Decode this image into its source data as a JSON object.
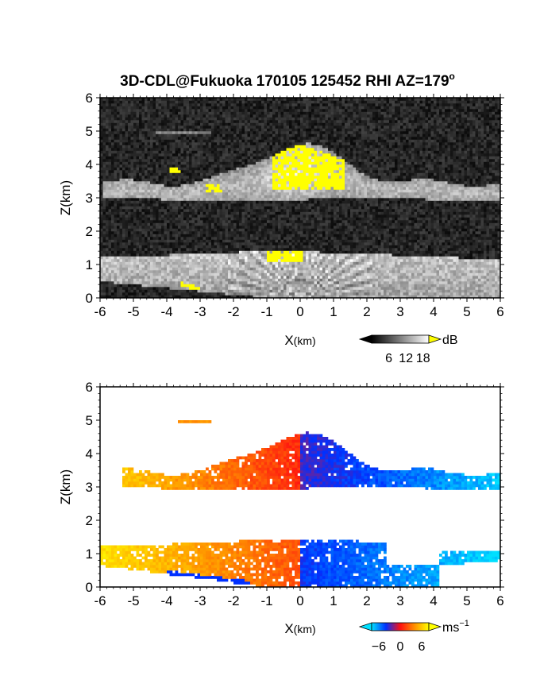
{
  "figure": {
    "title": "3D-CDL@Fukuoka 170105 125452 RHI AZ=179",
    "title_superscript": "o"
  },
  "chart_data": [
    {
      "type": "heatmap",
      "panel": "top",
      "quantity": "intensity",
      "xlabel_main": "X",
      "xlabel_unit": "(km)",
      "ylabel": "Z(km)",
      "xlim": [
        -6,
        6
      ],
      "ylim": [
        0,
        6
      ],
      "x_ticks": [
        "-6",
        "-5",
        "-4",
        "-3",
        "-2",
        "-1",
        "0",
        "1",
        "2",
        "3",
        "4",
        "5",
        "6"
      ],
      "y_ticks": [
        "0",
        "1",
        "2",
        "3",
        "4",
        "5",
        "6"
      ],
      "colorbar": {
        "unit": "dB",
        "ticks": [
          "6",
          "12",
          "18"
        ],
        "tick_values": [
          6,
          12,
          18
        ],
        "range": [
          0,
          20
        ],
        "colormap": "grayscale with yellow above max",
        "colors": {
          "low": "#000000",
          "high": "#ffffff",
          "over": "#ffff00"
        }
      },
      "features": [
        {
          "name": "upper cloud layer",
          "x_range": [
            -5.9,
            6
          ],
          "z_range": [
            2.9,
            4.7
          ],
          "peak_x": 0,
          "peak_z": 4.6
        },
        {
          "name": "lower aerosol layer",
          "x_range": [
            -6,
            6
          ],
          "z_range": [
            0,
            1.5
          ]
        },
        {
          "name": "thin layer",
          "x_range": [
            -4.3,
            -2.7
          ],
          "z_range": [
            4.9,
            5.0
          ]
        },
        {
          "name": "saturated core (yellow)",
          "x_range": [
            -0.8,
            1.3
          ],
          "z_range": [
            3.2,
            4.6
          ]
        },
        {
          "name": "saturated low core (yellow)",
          "x_range": [
            -1.0,
            0.1
          ],
          "z_range": [
            1.05,
            1.45
          ]
        }
      ],
      "grid": false
    },
    {
      "type": "heatmap",
      "panel": "bottom",
      "quantity": "Doppler velocity",
      "xlabel_main": "X",
      "xlabel_unit": "(km)",
      "ylabel": "Z(km)",
      "xlim": [
        -6,
        6
      ],
      "ylim": [
        0,
        6
      ],
      "x_ticks": [
        "-6",
        "-5",
        "-4",
        "-3",
        "-2",
        "-1",
        "0",
        "1",
        "2",
        "3",
        "4",
        "5",
        "6"
      ],
      "y_ticks": [
        "0",
        "1",
        "2",
        "3",
        "4",
        "5",
        "6"
      ],
      "colorbar": {
        "unit": "ms",
        "unit_exponent": "−1",
        "ticks": [
          "−6",
          "0",
          "6"
        ],
        "tick_values": [
          -6,
          0,
          6
        ],
        "range": [
          -8,
          8
        ],
        "colors": {
          "-8": "#00e0ff",
          "-4": "#0030ff",
          "0": "#ff1010",
          "4": "#ff9000",
          "8": "#ffff00"
        }
      },
      "features": [
        {
          "name": "upper layer",
          "x_range": [
            -5.3,
            6
          ],
          "z_range": [
            2.9,
            4.7
          ],
          "velocity_left": 6,
          "velocity_center_left": 1,
          "velocity_center_right": -3,
          "velocity_right": -7
        },
        {
          "name": "lower layer",
          "x_range": [
            -6,
            6
          ],
          "z_range": [
            0,
            1.5
          ],
          "velocity_left": 7,
          "velocity_center_left": 2,
          "velocity_center_right": -4,
          "velocity_right": -8
        },
        {
          "name": "thin layer",
          "x_range": [
            -3.7,
            -2.7
          ],
          "z_range": [
            4.9,
            5.0
          ],
          "velocity": 4
        }
      ],
      "grid": false
    }
  ]
}
